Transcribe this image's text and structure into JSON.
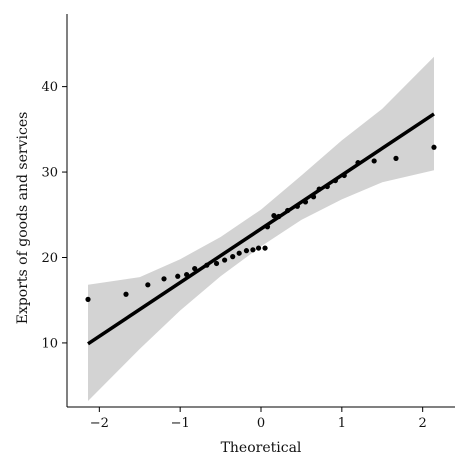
{
  "chart_data": {
    "type": "scatter",
    "title": "",
    "xlabel": "Theoretical",
    "ylabel": "Exports of goods and services",
    "xlim": [
      -2.4,
      2.4
    ],
    "ylim": [
      2.5,
      48.5
    ],
    "x_ticks": [
      -2,
      -1,
      0,
      1,
      2
    ],
    "y_ticks": [
      10,
      20,
      30,
      40
    ],
    "grid": false,
    "legend": "none",
    "colors": {
      "points": "#000000",
      "fit_line": "#000000",
      "confidence_band": "#d3d3d3",
      "axis": "#000000"
    },
    "points": [
      {
        "x": -2.14,
        "y": 15.1
      },
      {
        "x": -1.67,
        "y": 15.7
      },
      {
        "x": -1.4,
        "y": 16.8
      },
      {
        "x": -1.2,
        "y": 17.5
      },
      {
        "x": -1.03,
        "y": 17.8
      },
      {
        "x": -0.92,
        "y": 18.0
      },
      {
        "x": -0.82,
        "y": 18.7
      },
      {
        "x": -0.67,
        "y": 19.1
      },
      {
        "x": -0.55,
        "y": 19.3
      },
      {
        "x": -0.45,
        "y": 19.7
      },
      {
        "x": -0.35,
        "y": 20.1
      },
      {
        "x": -0.27,
        "y": 20.5
      },
      {
        "x": -0.18,
        "y": 20.8
      },
      {
        "x": -0.1,
        "y": 20.9
      },
      {
        "x": -0.03,
        "y": 21.1
      },
      {
        "x": 0.05,
        "y": 21.1
      },
      {
        "x": 0.08,
        "y": 23.6
      },
      {
        "x": 0.16,
        "y": 24.9
      },
      {
        "x": 0.22,
        "y": 24.8
      },
      {
        "x": 0.33,
        "y": 25.5
      },
      {
        "x": 0.45,
        "y": 26.0
      },
      {
        "x": 0.55,
        "y": 26.5
      },
      {
        "x": 0.65,
        "y": 27.1
      },
      {
        "x": 0.72,
        "y": 28.0
      },
      {
        "x": 0.82,
        "y": 28.3
      },
      {
        "x": 0.92,
        "y": 29.0
      },
      {
        "x": 1.03,
        "y": 29.6
      },
      {
        "x": 1.2,
        "y": 31.1
      },
      {
        "x": 1.4,
        "y": 31.3
      },
      {
        "x": 1.67,
        "y": 31.6
      },
      {
        "x": 2.14,
        "y": 32.9
      }
    ],
    "fit_line": {
      "x": [
        -2.14,
        2.14
      ],
      "y": [
        9.9,
        36.8
      ]
    },
    "confidence_band": {
      "x": [
        -2.14,
        -1.5,
        -1.0,
        -0.5,
        0.0,
        0.5,
        1.0,
        1.5,
        2.14
      ],
      "lower": [
        3.2,
        9.3,
        13.8,
        17.8,
        21.3,
        24.4,
        26.8,
        28.8,
        30.2
      ],
      "upper": [
        16.8,
        17.7,
        19.8,
        22.4,
        25.6,
        29.6,
        33.7,
        37.4,
        43.5
      ]
    }
  }
}
